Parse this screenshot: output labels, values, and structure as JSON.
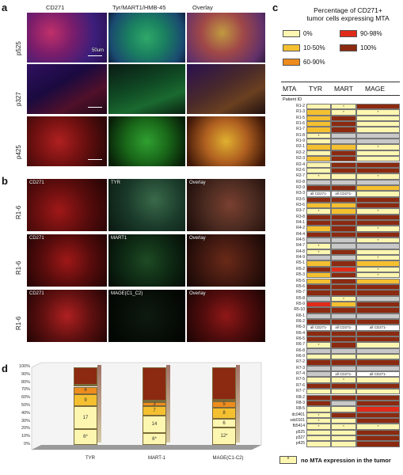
{
  "panels": {
    "a": "a",
    "b": "b",
    "c": "c",
    "d": "d"
  },
  "panel_a": {
    "columns": [
      "CD271",
      "Tyr/MART1/HMB-45",
      "Overlay"
    ],
    "rows": [
      "p525",
      "p327",
      "p425"
    ],
    "scale_text": "50um"
  },
  "panel_b": {
    "rows": [
      {
        "label": "R1-6",
        "tiles": [
          "CD271",
          "TYR",
          "Overlay"
        ]
      },
      {
        "label": "R1-6",
        "tiles": [
          "CD271",
          "MART1",
          "Overlay"
        ]
      },
      {
        "label": "R1-6",
        "tiles": [
          "CD271",
          "MAGE(C1_C2)",
          "Overlay"
        ]
      }
    ]
  },
  "panel_c": {
    "title_line1": "Percentage of CD271+",
    "title_line2": "tumor cells expressing MTA",
    "legend": [
      {
        "label": "0%",
        "color": "#fdf6b0"
      },
      {
        "label": "10-50%",
        "color": "#f5c030"
      },
      {
        "label": "60-90%",
        "color": "#ef8c1e"
      },
      {
        "label": "90-98%",
        "color": "#e02a1a"
      },
      {
        "label": "100%",
        "color": "#8b2a10"
      }
    ],
    "headers": [
      "MTA",
      "TYR",
      "MART",
      "MAGE"
    ],
    "patient_id_label": "Patient ID",
    "footnote": "no MTA expression in the tumor",
    "rows": [
      {
        "id": "R1-2",
        "c": [
          "y",
          "y*",
          "d"
        ]
      },
      {
        "id": "R1-3",
        "c": [
          "o",
          "y*",
          "y*"
        ]
      },
      {
        "id": "R1-5",
        "c": [
          "o",
          "d",
          "y"
        ]
      },
      {
        "id": "R1-6",
        "c": [
          "o",
          "d",
          "y"
        ]
      },
      {
        "id": "R1-7",
        "c": [
          "o",
          "d",
          "y"
        ]
      },
      {
        "id": "R1-8",
        "c": [
          "y*",
          "g",
          "g"
        ]
      },
      {
        "id": "R1-9",
        "c": [
          "y",
          "g",
          "g"
        ]
      },
      {
        "id": "R2-1",
        "c": [
          "o",
          "o",
          "y*"
        ]
      },
      {
        "id": "R2-2",
        "c": [
          "y",
          "d",
          "y"
        ]
      },
      {
        "id": "R2-3",
        "c": [
          "o",
          "d",
          "y"
        ]
      },
      {
        "id": "R2-4",
        "c": [
          "y",
          "d",
          "d"
        ]
      },
      {
        "id": "R2-6",
        "c": [
          "y",
          "d",
          "d"
        ]
      },
      {
        "id": "R2-7",
        "c": [
          "y*",
          "y",
          "y*"
        ]
      },
      {
        "id": "R2-8",
        "c": [
          "g",
          "g",
          "g"
        ]
      },
      {
        "id": "R2-9",
        "c": [
          "d",
          "d",
          "o"
        ]
      },
      {
        "id": "R3-3",
        "c": [
          "all CD271-",
          "all CD271-",
          "y"
        ]
      },
      {
        "id": "R3-5",
        "c": [
          "d",
          "d",
          "d"
        ]
      },
      {
        "id": "R3-6",
        "c": [
          "o",
          "o",
          "d"
        ]
      },
      {
        "id": "R3-7",
        "c": [
          "y*",
          "o",
          "y*"
        ]
      },
      {
        "id": "R3-8",
        "c": [
          "d",
          "d",
          "d"
        ]
      },
      {
        "id": "R4-1",
        "c": [
          "d",
          "d",
          "d"
        ]
      },
      {
        "id": "R4-2",
        "c": [
          "o",
          "d",
          "y*"
        ]
      },
      {
        "id": "R4-4",
        "c": [
          "d",
          "d",
          "d"
        ]
      },
      {
        "id": "R4-5",
        "c": [
          "g",
          "g",
          "y*"
        ]
      },
      {
        "id": "R4-7",
        "c": [
          "y*",
          "g",
          "g"
        ]
      },
      {
        "id": "R4-8",
        "c": [
          "y*",
          "d",
          "y"
        ]
      },
      {
        "id": "R4-9",
        "c": [
          "g",
          "g",
          "y*"
        ]
      },
      {
        "id": "R5-1",
        "c": [
          "o",
          "d",
          "o"
        ]
      },
      {
        "id": "R5-2",
        "c": [
          "d",
          "r",
          "y*"
        ]
      },
      {
        "id": "R5-3",
        "c": [
          "o",
          "d",
          "y*"
        ]
      },
      {
        "id": "R5-5",
        "c": [
          "o",
          "d",
          "o"
        ]
      },
      {
        "id": "R5-6",
        "c": [
          "d",
          "d",
          "d"
        ]
      },
      {
        "id": "R5-7",
        "c": [
          "d",
          "d",
          "d"
        ]
      },
      {
        "id": "R5-8",
        "c": [
          "g",
          "y*",
          "g"
        ]
      },
      {
        "id": "R5-9",
        "c": [
          "r",
          "o",
          "d"
        ]
      },
      {
        "id": "R5-10",
        "c": [
          "d",
          "d",
          "d"
        ]
      },
      {
        "id": "R6-1",
        "c": [
          "g",
          "g",
          "g"
        ]
      },
      {
        "id": "R6-2",
        "c": [
          "d",
          "d",
          "d"
        ]
      },
      {
        "id": "R6-3",
        "c": [
          "all CD271-",
          "all CD271-",
          "all CD271-"
        ]
      },
      {
        "id": "R6-4",
        "c": [
          "d",
          "d",
          "d"
        ]
      },
      {
        "id": "R6-5",
        "c": [
          "d",
          "d",
          "d"
        ]
      },
      {
        "id": "R6-7",
        "c": [
          "y*",
          "d",
          "y"
        ]
      },
      {
        "id": "R6-8",
        "c": [
          "g",
          "g",
          "g"
        ]
      },
      {
        "id": "R6-9",
        "c": [
          "y",
          "y",
          "y"
        ]
      },
      {
        "id": "R7-2",
        "c": [
          "d",
          "d",
          "d"
        ]
      },
      {
        "id": "R7-3",
        "c": [
          "g",
          "g",
          "g"
        ]
      },
      {
        "id": "R7-4",
        "c": [
          "g",
          "all CD271-",
          "all CD271-"
        ]
      },
      {
        "id": "R7-5",
        "c": [
          "y",
          "y*",
          "y"
        ]
      },
      {
        "id": "R7-6",
        "c": [
          "d",
          "d",
          "d"
        ]
      },
      {
        "id": "R7-7",
        "c": [
          "y",
          "y",
          "y"
        ]
      },
      {
        "id": "R8-2",
        "c": [
          "d",
          "d",
          "d"
        ]
      },
      {
        "id": "R8-3",
        "c": [
          "d",
          "g",
          "d"
        ]
      },
      {
        "id": "R8-5",
        "c": [
          "y",
          "y",
          "r"
        ]
      },
      {
        "id": "dc0401",
        "c": [
          "y*",
          "d",
          "d"
        ]
      },
      {
        "id": "ssk0101",
        "c": [
          "y*",
          "y",
          "d"
        ]
      },
      {
        "id": "fb5414",
        "c": [
          "y*",
          "y*",
          "y*"
        ]
      },
      {
        "id": "p525",
        "c": [
          "y",
          "y",
          "d"
        ]
      },
      {
        "id": "p327",
        "c": [
          "y",
          "y",
          "d"
        ]
      },
      {
        "id": "p425",
        "c": [
          "y",
          "y",
          "d"
        ]
      }
    ]
  },
  "chart_data": {
    "type": "bar",
    "stacked": true,
    "categories": [
      "TYR",
      "MART-1",
      "MAGE(C1-C2)"
    ],
    "ylim": [
      0,
      100
    ],
    "yticks": [
      "0%",
      "10%",
      "20%",
      "30%",
      "40%",
      "50%",
      "60%",
      "70%",
      "80%",
      "90%",
      "100%"
    ],
    "series": [
      {
        "color": "#fdf6b0",
        "values": [
          20,
          15,
          22
        ],
        "labels": [
          "6*",
          "6*",
          "12*"
        ]
      },
      {
        "color": "#fdf6b0",
        "values": [
          30,
          23,
          12
        ],
        "labels": [
          "17",
          "14",
          "6"
        ]
      },
      {
        "color": "#f5c030",
        "values": [
          15,
          12,
          14
        ],
        "labels": [
          "9",
          "7",
          "8"
        ]
      },
      {
        "color": "#ef8c1e",
        "values": [
          10,
          5,
          8
        ],
        "labels": [
          "6",
          "3",
          "5"
        ]
      },
      {
        "color": "#e02a1a",
        "values": [
          3,
          2,
          2
        ],
        "labels": [
          "",
          "",
          ""
        ]
      },
      {
        "color": "#8b2a10",
        "values": [
          22,
          43,
          42
        ],
        "labels": [
          "",
          "",
          ""
        ]
      }
    ]
  }
}
